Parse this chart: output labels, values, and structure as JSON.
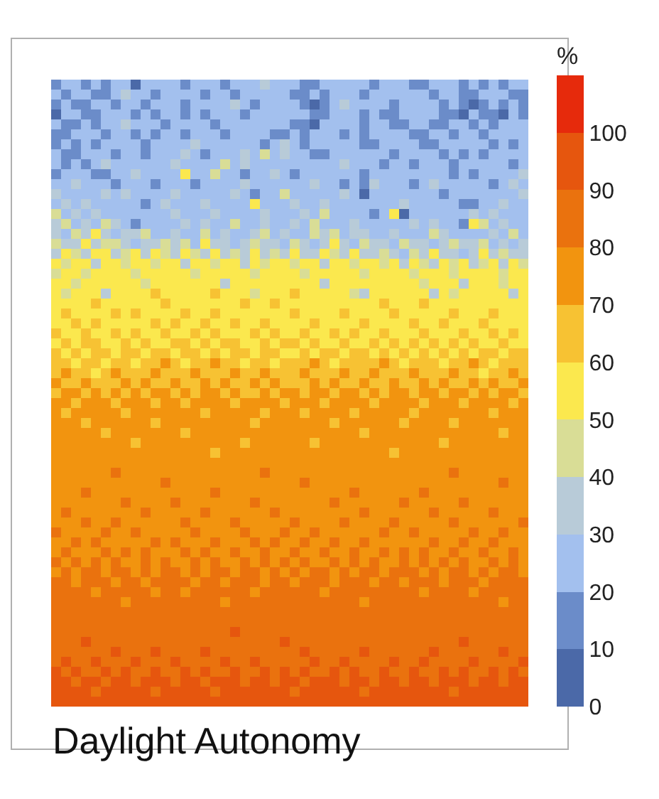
{
  "chart_data": {
    "type": "heatmap",
    "title": "Daylight Autonomy",
    "clabel": "%",
    "categories": [
      null,
      null,
      null,
      null,
      null,
      null,
      null,
      null,
      null,
      null,
      null,
      null,
      null,
      null,
      null,
      null,
      null,
      null,
      null,
      null,
      null,
      null,
      null,
      null,
      null,
      null,
      null,
      null,
      null,
      null,
      null,
      null,
      null,
      null,
      null,
      null,
      null,
      null,
      null,
      null,
      null,
      null,
      null,
      null,
      null,
      null,
      null,
      null
    ],
    "y_categories": [
      null,
      null,
      null,
      null,
      null,
      null,
      null,
      null,
      null,
      null,
      null,
      null,
      null,
      null,
      null,
      null,
      null,
      null,
      null,
      null,
      null,
      null,
      null,
      null,
      null,
      null,
      null,
      null,
      null,
      null,
      null,
      null,
      null,
      null,
      null,
      null,
      null,
      null,
      null,
      null,
      null,
      null,
      null,
      null,
      null,
      null,
      null,
      null,
      null,
      null,
      null,
      null,
      null,
      null,
      null,
      null,
      null,
      null,
      null,
      null,
      null,
      null,
      null
    ],
    "clim": [
      0,
      110
    ],
    "cticks": [
      0,
      10,
      20,
      30,
      40,
      50,
      60,
      70,
      80,
      90,
      100
    ],
    "colors": [
      "#4b69a8",
      "#6b8cc9",
      "#a3c0ee",
      "#b8cbd8",
      "#d9dd96",
      "#fbe84e",
      "#f7c233",
      "#f2940f",
      "#ea720e",
      "#e6560e",
      "#e62a0c"
    ],
    "cells": [
      [
        15,
        25,
        25,
        15,
        25,
        15,
        25,
        25,
        5,
        25,
        25,
        25,
        25,
        15,
        25,
        25,
        25,
        15,
        25,
        25,
        25,
        35,
        25,
        25,
        25,
        15,
        15,
        25,
        25,
        25,
        25,
        25,
        15,
        25,
        25,
        25,
        15,
        15,
        25,
        25,
        25,
        15,
        25,
        15,
        25,
        15,
        25,
        25
      ],
      [
        25,
        15,
        25,
        25,
        15,
        15,
        25,
        35,
        25,
        25,
        15,
        25,
        25,
        25,
        25,
        15,
        25,
        25,
        15,
        25,
        25,
        25,
        25,
        25,
        15,
        15,
        25,
        15,
        25,
        25,
        25,
        15,
        25,
        25,
        25,
        25,
        25,
        25,
        15,
        25,
        25,
        15,
        15,
        25,
        25,
        25,
        15,
        15
      ],
      [
        15,
        25,
        15,
        15,
        25,
        25,
        15,
        25,
        25,
        15,
        25,
        25,
        25,
        15,
        25,
        25,
        25,
        25,
        35,
        25,
        15,
        25,
        25,
        25,
        25,
        15,
        5,
        15,
        25,
        35,
        25,
        25,
        25,
        25,
        15,
        25,
        25,
        25,
        25,
        15,
        25,
        15,
        5,
        15,
        25,
        15,
        25,
        15
      ],
      [
        5,
        25,
        25,
        15,
        15,
        25,
        25,
        25,
        15,
        25,
        15,
        25,
        25,
        15,
        25,
        15,
        25,
        25,
        25,
        15,
        25,
        25,
        25,
        25,
        25,
        25,
        15,
        15,
        25,
        25,
        25,
        15,
        25,
        15,
        15,
        25,
        25,
        25,
        25,
        15,
        15,
        5,
        25,
        15,
        15,
        5,
        25,
        15
      ],
      [
        25,
        15,
        15,
        25,
        15,
        25,
        25,
        35,
        25,
        25,
        25,
        15,
        25,
        25,
        25,
        25,
        15,
        25,
        25,
        25,
        25,
        25,
        25,
        25,
        15,
        15,
        5,
        25,
        25,
        25,
        25,
        15,
        25,
        25,
        15,
        15,
        25,
        25,
        15,
        15,
        25,
        25,
        15,
        25,
        15,
        25,
        25,
        25
      ],
      [
        15,
        15,
        25,
        25,
        25,
        15,
        25,
        25,
        15,
        25,
        15,
        25,
        25,
        15,
        25,
        25,
        25,
        15,
        25,
        25,
        25,
        25,
        15,
        15,
        25,
        15,
        25,
        25,
        25,
        15,
        25,
        15,
        25,
        25,
        25,
        25,
        15,
        15,
        25,
        25,
        15,
        25,
        25,
        15,
        25,
        25,
        25,
        25
      ],
      [
        15,
        25,
        15,
        25,
        15,
        25,
        25,
        25,
        25,
        15,
        25,
        25,
        25,
        25,
        35,
        25,
        25,
        25,
        25,
        25,
        25,
        15,
        25,
        35,
        25,
        15,
        25,
        25,
        25,
        25,
        25,
        15,
        15,
        25,
        25,
        25,
        25,
        15,
        15,
        25,
        25,
        25,
        25,
        25,
        15,
        25,
        15,
        25
      ],
      [
        25,
        15,
        15,
        25,
        25,
        25,
        15,
        25,
        25,
        15,
        25,
        25,
        25,
        35,
        25,
        15,
        25,
        25,
        25,
        35,
        25,
        45,
        25,
        35,
        25,
        25,
        15,
        15,
        25,
        25,
        25,
        25,
        25,
        25,
        15,
        25,
        25,
        25,
        25,
        15,
        25,
        15,
        25,
        15,
        25,
        25,
        25,
        25
      ],
      [
        25,
        15,
        25,
        15,
        25,
        35,
        25,
        25,
        25,
        25,
        25,
        25,
        35,
        25,
        25,
        25,
        25,
        45,
        25,
        35,
        25,
        25,
        25,
        25,
        25,
        25,
        25,
        25,
        25,
        35,
        25,
        25,
        25,
        15,
        25,
        25,
        15,
        25,
        25,
        25,
        15,
        25,
        25,
        25,
        25,
        25,
        15,
        25
      ],
      [
        15,
        25,
        25,
        25,
        15,
        15,
        25,
        25,
        35,
        25,
        25,
        25,
        25,
        55,
        25,
        25,
        45,
        25,
        25,
        15,
        25,
        25,
        35,
        25,
        15,
        25,
        25,
        25,
        25,
        25,
        25,
        15,
        25,
        25,
        25,
        25,
        25,
        25,
        25,
        25,
        15,
        25,
        15,
        25,
        25,
        25,
        25,
        35
      ],
      [
        25,
        25,
        35,
        25,
        25,
        25,
        15,
        25,
        25,
        25,
        15,
        25,
        25,
        25,
        15,
        25,
        25,
        25,
        25,
        35,
        25,
        25,
        25,
        25,
        25,
        25,
        35,
        25,
        25,
        15,
        25,
        15,
        35,
        25,
        25,
        25,
        15,
        25,
        35,
        25,
        25,
        25,
        25,
        25,
        15,
        25,
        35,
        25
      ],
      [
        35,
        25,
        25,
        25,
        25,
        35,
        25,
        35,
        25,
        25,
        25,
        25,
        35,
        25,
        25,
        25,
        25,
        25,
        35,
        25,
        15,
        25,
        25,
        45,
        25,
        25,
        25,
        25,
        25,
        35,
        25,
        5,
        25,
        25,
        25,
        25,
        25,
        25,
        25,
        15,
        25,
        25,
        25,
        25,
        25,
        25,
        25,
        35
      ],
      [
        25,
        35,
        25,
        35,
        25,
        25,
        25,
        25,
        25,
        15,
        25,
        35,
        25,
        25,
        25,
        35,
        25,
        25,
        25,
        25,
        55,
        25,
        25,
        25,
        35,
        25,
        25,
        35,
        25,
        25,
        25,
        25,
        25,
        25,
        25,
        35,
        25,
        25,
        25,
        25,
        25,
        15,
        15,
        25,
        25,
        35,
        25,
        25
      ],
      [
        45,
        25,
        35,
        25,
        35,
        25,
        25,
        25,
        25,
        25,
        25,
        25,
        35,
        25,
        25,
        25,
        35,
        25,
        25,
        25,
        25,
        35,
        25,
        25,
        25,
        35,
        25,
        45,
        25,
        25,
        25,
        25,
        15,
        25,
        55,
        5,
        25,
        25,
        25,
        25,
        25,
        25,
        35,
        25,
        35,
        25,
        25,
        25
      ],
      [
        35,
        45,
        25,
        35,
        25,
        45,
        35,
        25,
        15,
        25,
        25,
        25,
        25,
        35,
        25,
        35,
        25,
        25,
        45,
        25,
        25,
        35,
        25,
        25,
        35,
        25,
        45,
        25,
        25,
        25,
        35,
        25,
        25,
        25,
        25,
        25,
        35,
        25,
        35,
        25,
        25,
        15,
        55,
        45,
        25,
        35,
        25,
        25
      ],
      [
        35,
        25,
        45,
        35,
        55,
        35,
        25,
        35,
        35,
        45,
        25,
        25,
        35,
        25,
        25,
        45,
        25,
        35,
        25,
        25,
        35,
        45,
        25,
        35,
        25,
        25,
        45,
        35,
        45,
        25,
        35,
        35,
        25,
        25,
        35,
        25,
        25,
        25,
        45,
        35,
        25,
        25,
        25,
        25,
        35,
        25,
        45,
        25
      ],
      [
        45,
        35,
        35,
        55,
        35,
        45,
        45,
        35,
        25,
        35,
        35,
        45,
        35,
        45,
        25,
        55,
        35,
        35,
        25,
        35,
        45,
        35,
        35,
        25,
        45,
        35,
        25,
        35,
        55,
        35,
        25,
        45,
        35,
        35,
        25,
        45,
        35,
        35,
        25,
        35,
        45,
        35,
        35,
        45,
        25,
        35,
        25,
        35
      ],
      [
        35,
        55,
        45,
        35,
        55,
        55,
        35,
        45,
        55,
        35,
        55,
        45,
        35,
        55,
        45,
        35,
        55,
        35,
        45,
        35,
        55,
        35,
        45,
        35,
        55,
        35,
        35,
        55,
        45,
        35,
        55,
        35,
        35,
        45,
        35,
        25,
        45,
        35,
        55,
        35,
        35,
        25,
        35,
        55,
        35,
        45,
        35,
        35
      ],
      [
        55,
        45,
        55,
        55,
        35,
        55,
        55,
        45,
        55,
        55,
        45,
        55,
        55,
        35,
        55,
        55,
        45,
        55,
        55,
        35,
        55,
        45,
        55,
        55,
        45,
        55,
        55,
        35,
        55,
        55,
        45,
        55,
        55,
        45,
        55,
        35,
        55,
        45,
        35,
        55,
        45,
        55,
        35,
        45,
        55,
        35,
        55,
        45
      ],
      [
        45,
        55,
        55,
        45,
        55,
        55,
        55,
        55,
        45,
        55,
        55,
        55,
        55,
        55,
        45,
        55,
        55,
        55,
        55,
        55,
        45,
        55,
        55,
        55,
        55,
        45,
        55,
        55,
        55,
        55,
        55,
        45,
        55,
        55,
        55,
        55,
        45,
        55,
        55,
        55,
        45,
        55,
        55,
        55,
        55,
        45,
        55,
        55
      ],
      [
        55,
        55,
        45,
        55,
        55,
        55,
        55,
        55,
        55,
        45,
        55,
        55,
        55,
        55,
        55,
        55,
        55,
        35,
        55,
        55,
        55,
        55,
        55,
        55,
        55,
        55,
        55,
        35,
        55,
        55,
        55,
        55,
        55,
        55,
        55,
        55,
        55,
        45,
        55,
        55,
        55,
        35,
        55,
        55,
        55,
        45,
        55,
        55
      ],
      [
        55,
        45,
        55,
        55,
        55,
        35,
        55,
        55,
        55,
        55,
        65,
        55,
        55,
        55,
        55,
        55,
        65,
        55,
        55,
        55,
        45,
        55,
        55,
        55,
        65,
        55,
        55,
        55,
        55,
        55,
        45,
        35,
        55,
        55,
        55,
        55,
        55,
        55,
        35,
        55,
        45,
        55,
        55,
        55,
        55,
        55,
        35,
        55
      ],
      [
        55,
        55,
        55,
        55,
        65,
        55,
        55,
        55,
        55,
        55,
        55,
        65,
        55,
        55,
        55,
        55,
        55,
        55,
        55,
        65,
        55,
        55,
        65,
        55,
        55,
        55,
        55,
        55,
        55,
        55,
        55,
        55,
        55,
        65,
        55,
        55,
        55,
        65,
        55,
        55,
        55,
        55,
        55,
        55,
        55,
        55,
        55,
        55
      ],
      [
        55,
        65,
        55,
        55,
        55,
        55,
        65,
        55,
        65,
        55,
        55,
        55,
        55,
        65,
        55,
        55,
        65,
        55,
        55,
        55,
        55,
        55,
        55,
        55,
        65,
        55,
        55,
        55,
        55,
        65,
        55,
        55,
        55,
        55,
        65,
        55,
        55,
        55,
        55,
        55,
        65,
        55,
        55,
        55,
        65,
        55,
        55,
        55
      ],
      [
        55,
        55,
        65,
        55,
        65,
        55,
        55,
        55,
        55,
        55,
        65,
        55,
        65,
        55,
        55,
        65,
        55,
        55,
        65,
        55,
        55,
        65,
        55,
        55,
        55,
        55,
        65,
        55,
        55,
        55,
        55,
        65,
        55,
        55,
        55,
        55,
        65,
        55,
        55,
        65,
        55,
        55,
        55,
        65,
        55,
        55,
        55,
        55
      ],
      [
        65,
        55,
        55,
        65,
        55,
        55,
        65,
        55,
        65,
        55,
        55,
        65,
        55,
        55,
        65,
        55,
        65,
        55,
        55,
        55,
        65,
        55,
        65,
        55,
        55,
        65,
        55,
        55,
        65,
        55,
        65,
        55,
        55,
        65,
        55,
        55,
        55,
        65,
        55,
        55,
        55,
        65,
        55,
        55,
        65,
        55,
        65,
        55
      ],
      [
        55,
        65,
        55,
        65,
        65,
        55,
        55,
        65,
        55,
        65,
        55,
        55,
        65,
        65,
        55,
        65,
        55,
        65,
        65,
        55,
        55,
        65,
        55,
        65,
        65,
        55,
        65,
        55,
        55,
        65,
        55,
        55,
        65,
        55,
        65,
        55,
        65,
        55,
        65,
        55,
        65,
        55,
        65,
        55,
        55,
        65,
        55,
        55
      ],
      [
        65,
        55,
        65,
        55,
        65,
        65,
        55,
        65,
        65,
        55,
        65,
        65,
        55,
        65,
        65,
        55,
        65,
        55,
        65,
        65,
        55,
        65,
        65,
        55,
        55,
        65,
        55,
        65,
        65,
        55,
        65,
        65,
        55,
        65,
        55,
        65,
        55,
        65,
        55,
        65,
        55,
        65,
        55,
        65,
        65,
        55,
        65,
        65
      ],
      [
        65,
        65,
        55,
        65,
        65,
        55,
        65,
        65,
        55,
        65,
        65,
        75,
        65,
        55,
        65,
        65,
        75,
        65,
        65,
        55,
        65,
        65,
        55,
        65,
        65,
        65,
        75,
        65,
        55,
        65,
        65,
        65,
        65,
        75,
        65,
        55,
        65,
        65,
        65,
        55,
        65,
        65,
        75,
        65,
        55,
        65,
        65,
        65
      ],
      [
        65,
        75,
        65,
        65,
        55,
        65,
        75,
        65,
        65,
        65,
        75,
        65,
        65,
        65,
        75,
        65,
        65,
        65,
        75,
        65,
        65,
        75,
        65,
        65,
        65,
        75,
        65,
        65,
        65,
        75,
        65,
        65,
        75,
        65,
        65,
        65,
        75,
        65,
        65,
        65,
        75,
        65,
        65,
        55,
        65,
        65,
        75,
        65
      ],
      [
        75,
        65,
        65,
        75,
        65,
        65,
        65,
        75,
        65,
        75,
        65,
        65,
        75,
        65,
        65,
        75,
        65,
        75,
        65,
        65,
        75,
        65,
        75,
        65,
        65,
        65,
        75,
        65,
        75,
        65,
        65,
        75,
        65,
        65,
        75,
        65,
        65,
        75,
        65,
        75,
        65,
        65,
        75,
        65,
        75,
        65,
        65,
        75
      ],
      [
        65,
        75,
        75,
        65,
        75,
        65,
        75,
        65,
        75,
        65,
        75,
        75,
        65,
        75,
        65,
        75,
        75,
        65,
        75,
        65,
        65,
        75,
        65,
        75,
        75,
        65,
        75,
        75,
        65,
        75,
        75,
        65,
        75,
        65,
        75,
        75,
        65,
        75,
        75,
        65,
        75,
        75,
        65,
        75,
        65,
        75,
        75,
        65
      ],
      [
        75,
        75,
        65,
        75,
        75,
        75,
        65,
        75,
        75,
        75,
        65,
        75,
        75,
        65,
        75,
        75,
        75,
        75,
        65,
        75,
        75,
        75,
        75,
        65,
        75,
        75,
        75,
        65,
        75,
        75,
        75,
        75,
        65,
        75,
        75,
        75,
        75,
        65,
        75,
        75,
        75,
        65,
        75,
        75,
        75,
        75,
        65,
        75
      ],
      [
        75,
        65,
        75,
        75,
        75,
        75,
        75,
        65,
        75,
        75,
        75,
        75,
        75,
        75,
        75,
        65,
        75,
        75,
        75,
        75,
        75,
        65,
        75,
        75,
        75,
        65,
        75,
        75,
        75,
        75,
        65,
        75,
        75,
        75,
        75,
        75,
        65,
        75,
        75,
        75,
        75,
        75,
        75,
        75,
        65,
        75,
        75,
        75
      ],
      [
        75,
        75,
        75,
        65,
        75,
        75,
        75,
        75,
        75,
        75,
        65,
        75,
        75,
        75,
        75,
        75,
        75,
        75,
        75,
        75,
        65,
        75,
        75,
        75,
        75,
        75,
        75,
        75,
        65,
        75,
        75,
        75,
        75,
        75,
        75,
        65,
        75,
        75,
        75,
        75,
        65,
        75,
        75,
        75,
        75,
        75,
        75,
        75
      ],
      [
        75,
        75,
        75,
        75,
        75,
        65,
        75,
        75,
        75,
        75,
        75,
        75,
        75,
        65,
        75,
        75,
        75,
        75,
        75,
        75,
        75,
        75,
        75,
        75,
        75,
        75,
        75,
        75,
        75,
        75,
        75,
        65,
        75,
        75,
        75,
        75,
        75,
        75,
        75,
        75,
        75,
        75,
        75,
        75,
        75,
        65,
        75,
        75
      ],
      [
        75,
        75,
        75,
        75,
        75,
        75,
        75,
        75,
        65,
        75,
        75,
        75,
        75,
        75,
        75,
        75,
        75,
        75,
        75,
        65,
        75,
        75,
        75,
        75,
        75,
        75,
        65,
        75,
        75,
        75,
        75,
        75,
        75,
        75,
        75,
        75,
        75,
        75,
        75,
        65,
        75,
        75,
        75,
        75,
        75,
        75,
        75,
        75
      ],
      [
        75,
        75,
        75,
        75,
        75,
        75,
        75,
        75,
        75,
        75,
        75,
        75,
        75,
        75,
        75,
        75,
        65,
        75,
        75,
        75,
        75,
        75,
        75,
        75,
        75,
        75,
        75,
        75,
        75,
        75,
        75,
        75,
        75,
        75,
        65,
        75,
        75,
        75,
        75,
        75,
        75,
        75,
        75,
        75,
        75,
        75,
        75,
        75
      ],
      [
        75,
        75,
        75,
        75,
        75,
        75,
        75,
        75,
        75,
        75,
        75,
        75,
        75,
        75,
        75,
        75,
        75,
        75,
        75,
        75,
        75,
        75,
        75,
        75,
        75,
        75,
        75,
        75,
        75,
        75,
        75,
        75,
        75,
        75,
        75,
        75,
        75,
        75,
        75,
        75,
        75,
        75,
        75,
        75,
        75,
        75,
        75,
        75
      ],
      [
        75,
        75,
        75,
        75,
        75,
        75,
        85,
        75,
        75,
        75,
        75,
        75,
        75,
        75,
        75,
        75,
        75,
        75,
        75,
        75,
        75,
        85,
        75,
        75,
        75,
        75,
        75,
        75,
        75,
        75,
        75,
        75,
        75,
        75,
        75,
        75,
        75,
        75,
        75,
        75,
        85,
        75,
        75,
        75,
        75,
        75,
        75,
        75
      ],
      [
        75,
        75,
        75,
        75,
        75,
        75,
        75,
        75,
        75,
        75,
        75,
        85,
        75,
        75,
        75,
        75,
        75,
        75,
        75,
        75,
        75,
        75,
        75,
        75,
        75,
        85,
        75,
        75,
        75,
        75,
        75,
        75,
        75,
        75,
        75,
        75,
        75,
        75,
        75,
        75,
        75,
        75,
        75,
        75,
        75,
        85,
        75,
        75
      ],
      [
        75,
        75,
        75,
        85,
        75,
        75,
        75,
        75,
        75,
        75,
        75,
        75,
        75,
        75,
        75,
        75,
        85,
        75,
        75,
        75,
        75,
        75,
        75,
        75,
        75,
        75,
        75,
        75,
        75,
        75,
        85,
        75,
        75,
        75,
        75,
        75,
        75,
        85,
        75,
        75,
        75,
        75,
        75,
        75,
        75,
        75,
        75,
        75
      ],
      [
        75,
        75,
        75,
        75,
        75,
        75,
        75,
        85,
        75,
        75,
        75,
        75,
        85,
        75,
        75,
        75,
        75,
        75,
        75,
        75,
        85,
        75,
        75,
        75,
        75,
        75,
        75,
        75,
        85,
        75,
        75,
        75,
        75,
        75,
        75,
        85,
        75,
        75,
        75,
        75,
        75,
        85,
        75,
        75,
        75,
        75,
        75,
        75
      ],
      [
        75,
        85,
        75,
        75,
        75,
        75,
        75,
        75,
        75,
        85,
        75,
        75,
        75,
        75,
        75,
        85,
        75,
        75,
        75,
        75,
        75,
        75,
        85,
        75,
        75,
        75,
        75,
        75,
        75,
        75,
        75,
        85,
        75,
        75,
        75,
        75,
        75,
        75,
        85,
        75,
        75,
        75,
        75,
        75,
        85,
        75,
        75,
        75
      ],
      [
        75,
        75,
        75,
        85,
        75,
        75,
        85,
        75,
        75,
        75,
        75,
        75,
        75,
        85,
        75,
        75,
        75,
        75,
        85,
        75,
        75,
        75,
        75,
        75,
        85,
        75,
        75,
        75,
        75,
        85,
        75,
        75,
        75,
        75,
        85,
        75,
        75,
        75,
        75,
        75,
        85,
        75,
        75,
        75,
        75,
        75,
        75,
        85
      ],
      [
        85,
        75,
        75,
        75,
        75,
        85,
        75,
        75,
        85,
        75,
        75,
        75,
        75,
        75,
        85,
        75,
        75,
        75,
        75,
        85,
        75,
        75,
        75,
        85,
        75,
        75,
        85,
        75,
        75,
        75,
        75,
        75,
        75,
        85,
        75,
        75,
        85,
        75,
        75,
        75,
        75,
        75,
        85,
        75,
        75,
        85,
        75,
        75
      ],
      [
        75,
        75,
        85,
        75,
        85,
        75,
        75,
        75,
        75,
        75,
        85,
        75,
        85,
        75,
        75,
        75,
        85,
        75,
        75,
        75,
        85,
        75,
        85,
        75,
        75,
        85,
        75,
        75,
        85,
        75,
        75,
        85,
        75,
        75,
        75,
        75,
        75,
        75,
        85,
        75,
        75,
        85,
        75,
        75,
        85,
        75,
        75,
        75
      ],
      [
        75,
        85,
        75,
        75,
        75,
        85,
        75,
        85,
        75,
        85,
        75,
        75,
        75,
        85,
        75,
        85,
        75,
        75,
        85,
        75,
        75,
        85,
        75,
        75,
        85,
        75,
        75,
        85,
        75,
        75,
        85,
        75,
        75,
        85,
        75,
        85,
        75,
        85,
        75,
        75,
        85,
        75,
        75,
        85,
        75,
        75,
        85,
        75
      ],
      [
        85,
        75,
        85,
        75,
        85,
        75,
        85,
        75,
        75,
        85,
        75,
        85,
        75,
        75,
        85,
        75,
        85,
        75,
        75,
        85,
        75,
        85,
        75,
        85,
        75,
        85,
        75,
        75,
        85,
        75,
        85,
        75,
        85,
        75,
        75,
        85,
        75,
        85,
        75,
        85,
        75,
        85,
        75,
        75,
        85,
        75,
        85,
        75
      ],
      [
        75,
        85,
        75,
        85,
        85,
        75,
        85,
        85,
        75,
        85,
        75,
        85,
        85,
        75,
        85,
        75,
        85,
        85,
        75,
        85,
        85,
        75,
        85,
        75,
        85,
        75,
        85,
        85,
        75,
        85,
        75,
        85,
        85,
        75,
        85,
        85,
        85,
        75,
        85,
        75,
        85,
        85,
        75,
        85,
        75,
        85,
        85,
        75
      ],
      [
        85,
        85,
        75,
        85,
        85,
        85,
        75,
        85,
        85,
        75,
        85,
        85,
        85,
        85,
        75,
        85,
        85,
        75,
        85,
        85,
        85,
        75,
        85,
        85,
        75,
        85,
        85,
        85,
        75,
        85,
        85,
        85,
        75,
        85,
        85,
        75,
        85,
        85,
        85,
        75,
        85,
        85,
        85,
        75,
        85,
        85,
        85,
        85
      ],
      [
        85,
        85,
        85,
        85,
        75,
        85,
        85,
        85,
        85,
        85,
        75,
        85,
        85,
        75,
        85,
        85,
        85,
        85,
        85,
        85,
        75,
        85,
        85,
        85,
        85,
        85,
        85,
        75,
        85,
        85,
        85,
        85,
        85,
        85,
        85,
        85,
        85,
        75,
        85,
        85,
        85,
        85,
        75,
        85,
        85,
        85,
        85,
        85
      ],
      [
        85,
        85,
        85,
        85,
        85,
        85,
        85,
        75,
        85,
        85,
        85,
        85,
        85,
        85,
        85,
        85,
        85,
        75,
        85,
        85,
        85,
        85,
        85,
        85,
        85,
        85,
        85,
        85,
        85,
        85,
        85,
        75,
        85,
        85,
        85,
        85,
        85,
        85,
        85,
        85,
        85,
        85,
        85,
        85,
        85,
        75,
        85,
        85
      ],
      [
        85,
        85,
        85,
        85,
        85,
        85,
        85,
        85,
        85,
        85,
        85,
        85,
        85,
        85,
        85,
        85,
        85,
        85,
        85,
        85,
        85,
        85,
        85,
        85,
        85,
        85,
        85,
        85,
        85,
        85,
        85,
        85,
        85,
        85,
        85,
        85,
        85,
        85,
        85,
        85,
        85,
        85,
        85,
        85,
        85,
        85,
        85,
        85
      ],
      [
        85,
        85,
        85,
        85,
        85,
        85,
        85,
        85,
        85,
        85,
        85,
        85,
        85,
        85,
        85,
        85,
        85,
        85,
        85,
        85,
        85,
        85,
        85,
        85,
        85,
        85,
        85,
        85,
        85,
        85,
        85,
        85,
        85,
        85,
        85,
        85,
        85,
        85,
        85,
        85,
        85,
        85,
        85,
        85,
        85,
        85,
        85,
        85
      ],
      [
        85,
        85,
        85,
        85,
        85,
        85,
        85,
        85,
        85,
        85,
        85,
        85,
        85,
        85,
        85,
        85,
        85,
        85,
        95,
        85,
        85,
        85,
        85,
        85,
        85,
        85,
        85,
        85,
        85,
        85,
        85,
        85,
        85,
        85,
        85,
        85,
        85,
        85,
        85,
        85,
        85,
        85,
        85,
        85,
        85,
        85,
        85,
        85
      ],
      [
        85,
        85,
        85,
        95,
        85,
        85,
        85,
        85,
        85,
        85,
        85,
        85,
        85,
        85,
        85,
        85,
        85,
        85,
        85,
        85,
        85,
        85,
        85,
        95,
        85,
        85,
        85,
        85,
        85,
        85,
        85,
        85,
        85,
        85,
        85,
        85,
        85,
        85,
        85,
        85,
        85,
        95,
        85,
        85,
        85,
        85,
        85,
        85
      ],
      [
        85,
        85,
        85,
        85,
        85,
        85,
        95,
        85,
        85,
        85,
        95,
        85,
        85,
        85,
        85,
        95,
        85,
        85,
        85,
        85,
        85,
        85,
        85,
        85,
        85,
        95,
        85,
        85,
        85,
        85,
        85,
        95,
        85,
        85,
        85,
        85,
        85,
        85,
        95,
        85,
        85,
        85,
        85,
        85,
        85,
        95,
        85,
        85
      ],
      [
        85,
        95,
        85,
        85,
        95,
        85,
        85,
        85,
        95,
        85,
        85,
        85,
        95,
        85,
        85,
        85,
        85,
        95,
        85,
        85,
        95,
        85,
        85,
        85,
        85,
        85,
        95,
        85,
        85,
        95,
        85,
        85,
        85,
        85,
        95,
        85,
        85,
        95,
        85,
        85,
        85,
        85,
        95,
        85,
        85,
        85,
        85,
        95
      ],
      [
        95,
        85,
        95,
        85,
        85,
        95,
        85,
        95,
        85,
        85,
        95,
        85,
        85,
        95,
        85,
        95,
        85,
        85,
        95,
        85,
        85,
        95,
        85,
        95,
        85,
        95,
        85,
        85,
        95,
        85,
        95,
        85,
        85,
        95,
        85,
        85,
        95,
        85,
        85,
        95,
        85,
        95,
        85,
        85,
        95,
        85,
        95,
        85
      ],
      [
        95,
        95,
        85,
        95,
        95,
        85,
        95,
        95,
        85,
        95,
        95,
        95,
        85,
        95,
        95,
        85,
        95,
        95,
        95,
        85,
        95,
        95,
        85,
        95,
        95,
        85,
        95,
        95,
        95,
        85,
        95,
        95,
        85,
        95,
        95,
        85,
        95,
        95,
        85,
        95,
        95,
        95,
        85,
        95,
        95,
        85,
        95,
        95
      ],
      [
        95,
        95,
        95,
        95,
        85,
        95,
        95,
        95,
        95,
        95,
        85,
        95,
        95,
        95,
        95,
        95,
        85,
        95,
        95,
        95,
        95,
        95,
        95,
        95,
        85,
        95,
        95,
        95,
        95,
        95,
        95,
        85,
        95,
        95,
        95,
        95,
        95,
        95,
        95,
        95,
        85,
        95,
        95,
        95,
        95,
        95,
        95,
        95
      ],
      [
        95,
        95,
        95,
        95,
        95,
        95,
        95,
        95,
        95,
        95,
        95,
        95,
        95,
        95,
        95,
        95,
        95,
        95,
        95,
        95,
        95,
        95,
        95,
        95,
        95,
        95,
        95,
        95,
        95,
        95,
        95,
        95,
        95,
        95,
        95,
        95,
        95,
        95,
        95,
        95,
        95,
        95,
        95,
        95,
        95,
        95,
        95,
        95
      ]
    ]
  }
}
